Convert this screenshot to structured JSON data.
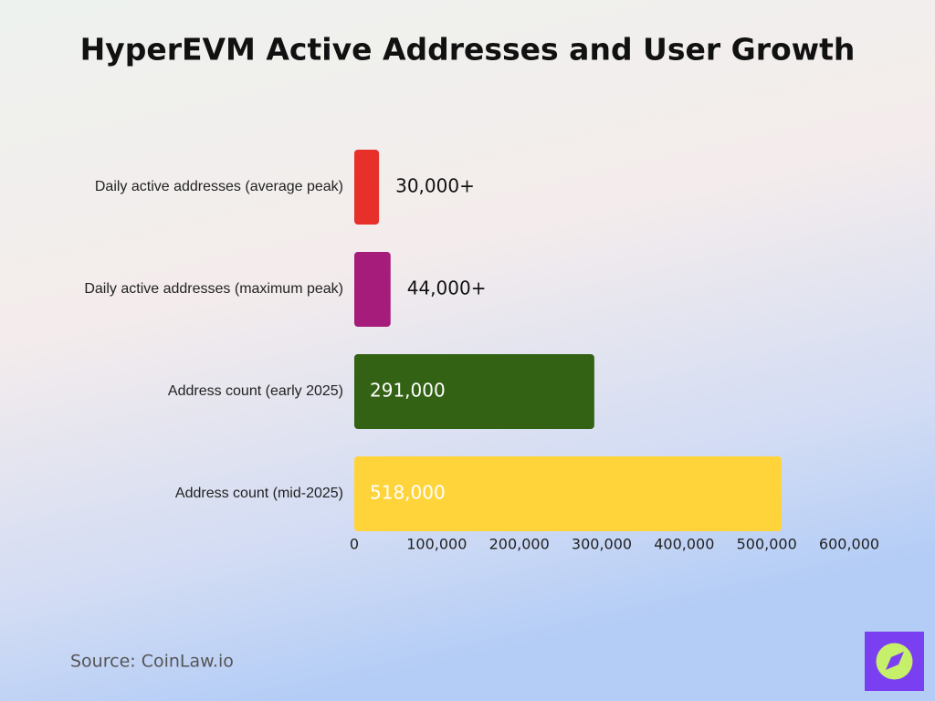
{
  "chart_data": {
    "type": "bar",
    "orientation": "horizontal",
    "title": "HyperEVM Active Addresses and User Growth",
    "categories": [
      "Daily active addresses (average peak)",
      "Daily active addresses (maximum peak)",
      "Address count (early 2025)",
      "Address count (mid-2025)"
    ],
    "values": [
      30000,
      44000,
      291000,
      518000
    ],
    "value_labels": [
      "30,000+",
      "44,000+",
      "291,000",
      "518,000"
    ],
    "colors": [
      "#e8302a",
      "#a51c7a",
      "#336214",
      "#ffd43a"
    ],
    "xlim": [
      0,
      600000
    ],
    "xticks": [
      0,
      {
        "value": 100000,
        "label": "100,000"
      },
      {
        "value": 200000,
        "label": "200,000"
      },
      {
        "value": 300000,
        "label": "300,000"
      },
      {
        "value": 400000,
        "label": "400,000"
      },
      {
        "value": 500000,
        "label": "500,000"
      },
      {
        "value": 600000,
        "label": "600,000"
      }
    ],
    "grid": false,
    "source": "Source: CoinLaw.io"
  }
}
